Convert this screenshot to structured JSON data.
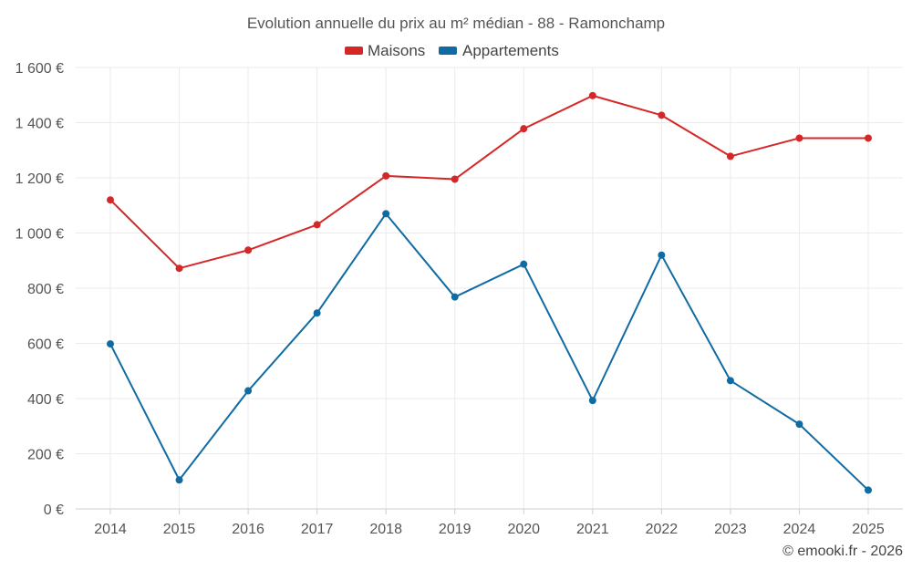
{
  "chart_data": {
    "type": "line",
    "title": "Evolution annuelle du prix au m² médian - 88 - Ramonchamp",
    "categories": [
      "2014",
      "2015",
      "2016",
      "2017",
      "2018",
      "2019",
      "2020",
      "2021",
      "2022",
      "2023",
      "2024",
      "2025"
    ],
    "series": [
      {
        "name": "Maisons",
        "color": "#d62728",
        "values": [
          1120,
          872,
          938,
          1030,
          1207,
          1195,
          1378,
          1498,
          1427,
          1278,
          1344,
          1344
        ]
      },
      {
        "name": "Appartements",
        "color": "#106ba3",
        "values": [
          598,
          105,
          428,
          710,
          1070,
          768,
          887,
          393,
          920,
          465,
          307,
          68
        ]
      }
    ],
    "xlabel": "",
    "ylabel": "",
    "ylim": [
      0,
      1600
    ],
    "yticks": [
      0,
      200,
      400,
      600,
      800,
      1000,
      1200,
      1400,
      1600
    ],
    "ytick_labels": [
      "0 €",
      "200 €",
      "400 €",
      "600 €",
      "800 €",
      "1 000 €",
      "1 200 €",
      "1 400 €",
      "1 600 €"
    ],
    "grid": true,
    "legend_position": "top-center"
  },
  "credit": "© emooki.fr - 2026"
}
